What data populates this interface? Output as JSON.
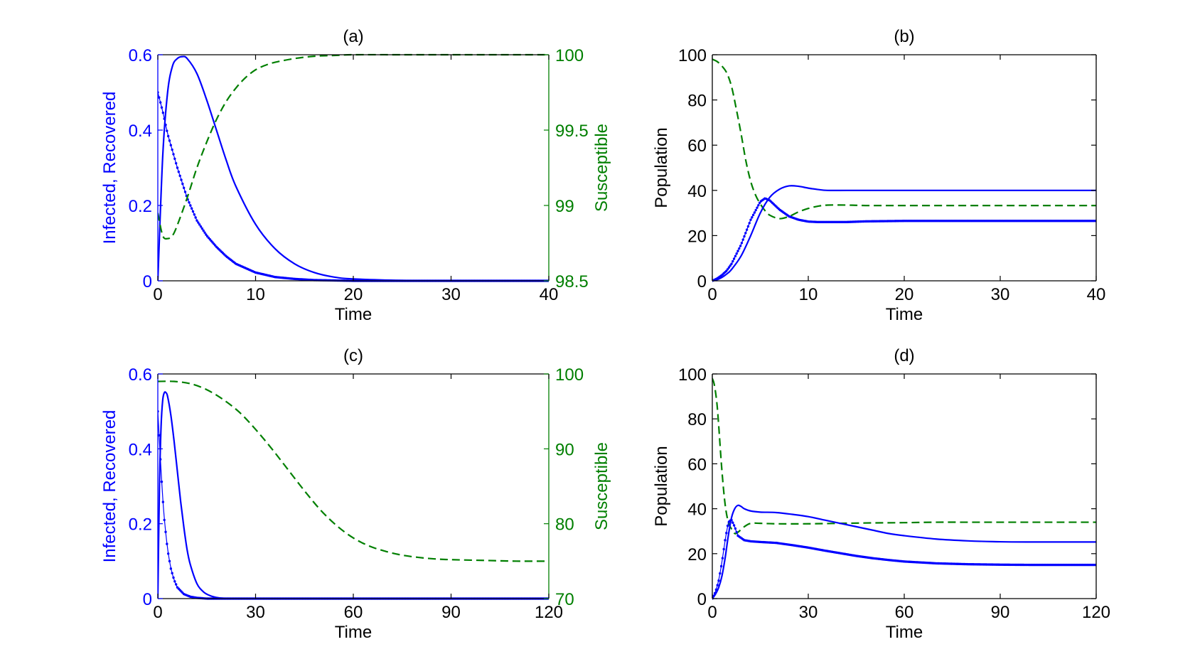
{
  "figure": {
    "description_free": true
  },
  "colors": {
    "blue": "#0000ff",
    "green": "#007f00",
    "black": "#000000",
    "dark_blue": "#1c1cc8"
  },
  "chart_data": [
    {
      "panel": "a",
      "type": "line",
      "title": "(a)",
      "xlabel": "Time",
      "ylabel_left": "Infected, Recovered",
      "ylabel_right": "Susceptible",
      "xlim": [
        0,
        40
      ],
      "ylim_left": [
        0,
        0.6
      ],
      "ylim_right": [
        98.5,
        100
      ],
      "xticks": [
        0,
        10,
        20,
        30,
        40
      ],
      "yticks_left": [
        0,
        0.2,
        0.4,
        0.6
      ],
      "ytick_labels_left": [
        "0",
        "0.2",
        "0.4",
        "0.6"
      ],
      "yticks_right": [
        98.5,
        99,
        99.5,
        100
      ],
      "ytick_labels_right": [
        "98.5",
        "99",
        "99.5",
        "100"
      ],
      "series": [
        {
          "name": "Infected",
          "axis": "left",
          "style": "solid",
          "color": "#0000ff",
          "x": [
            0,
            0.5,
            1,
            1.5,
            2,
            2.5,
            3,
            4,
            5,
            6,
            7,
            8,
            10,
            12,
            14,
            16,
            18,
            20,
            25,
            30,
            35,
            40
          ],
          "y": [
            0.0,
            0.33,
            0.5,
            0.57,
            0.59,
            0.595,
            0.59,
            0.55,
            0.48,
            0.4,
            0.32,
            0.25,
            0.15,
            0.085,
            0.045,
            0.022,
            0.01,
            0.005,
            0.001,
            0.0,
            0.0,
            0.0
          ]
        },
        {
          "name": "Recovered",
          "axis": "left",
          "style": "dotted",
          "color": "#0000ff",
          "x": [
            0,
            0.5,
            1,
            2,
            3,
            4,
            5,
            6,
            7,
            8,
            10,
            12,
            14,
            16,
            20,
            25,
            30,
            35,
            40
          ],
          "y": [
            0.5,
            0.45,
            0.39,
            0.3,
            0.22,
            0.16,
            0.12,
            0.09,
            0.065,
            0.045,
            0.022,
            0.01,
            0.005,
            0.002,
            0.0,
            0.0,
            0.0,
            0.0,
            0.0
          ]
        },
        {
          "name": "Susceptible",
          "axis": "right",
          "style": "dashed",
          "color": "#007f00",
          "x": [
            0,
            0.5,
            1,
            1.5,
            2,
            3,
            4,
            5,
            6,
            7,
            8,
            9,
            10,
            11,
            12,
            14,
            16,
            18,
            20,
            25,
            30,
            35,
            40
          ],
          "y": [
            98.95,
            98.8,
            98.78,
            98.8,
            98.87,
            99.05,
            99.25,
            99.42,
            99.57,
            99.69,
            99.78,
            99.85,
            99.9,
            99.93,
            99.95,
            99.975,
            99.99,
            99.995,
            100.0,
            100.0,
            100.0,
            100.0,
            100.0
          ]
        }
      ]
    },
    {
      "panel": "b",
      "type": "line",
      "title": "(b)",
      "xlabel": "Time",
      "ylabel": "Population",
      "xlim": [
        0,
        40
      ],
      "ylim": [
        0,
        100
      ],
      "xticks": [
        0,
        10,
        20,
        30,
        40
      ],
      "yticks": [
        0,
        20,
        40,
        60,
        80,
        100
      ],
      "series": [
        {
          "name": "Susceptible",
          "style": "dashed",
          "color": "#007f00",
          "x": [
            0,
            0.5,
            1,
            1.5,
            2,
            2.5,
            3,
            3.5,
            4,
            4.5,
            5,
            5.5,
            6,
            7,
            8,
            9,
            10,
            11,
            12,
            14,
            16,
            20,
            25,
            30,
            35,
            40
          ],
          "y": [
            98,
            97,
            95,
            92,
            86,
            76,
            65,
            53,
            44,
            38,
            34,
            31,
            29,
            27.5,
            28.5,
            30.5,
            32,
            33,
            33.5,
            33.5,
            33.3,
            33.3,
            33.3,
            33.3,
            33.3,
            33.3
          ]
        },
        {
          "name": "Infected",
          "style": "solid",
          "color": "#0000ff",
          "x": [
            0,
            0.5,
            1,
            1.5,
            2,
            3,
            4,
            5,
            6,
            7,
            8,
            9,
            10,
            11,
            12,
            14,
            16,
            20,
            25,
            30,
            35,
            40
          ],
          "y": [
            0,
            0.5,
            1.5,
            3,
            5,
            11,
            20,
            30,
            37,
            40.5,
            42,
            41.8,
            41,
            40.4,
            40,
            40,
            40,
            40,
            40,
            40,
            40,
            40
          ]
        },
        {
          "name": "Recovered",
          "style": "dotted",
          "color": "#0000ff",
          "x": [
            0,
            0.5,
            1,
            1.5,
            2,
            3,
            4,
            5,
            5.5,
            6,
            7,
            8,
            9,
            10,
            11,
            12,
            14,
            16,
            20,
            25,
            30,
            35,
            40
          ],
          "y": [
            0,
            1,
            2.5,
            4.5,
            7.5,
            16,
            27,
            35,
            36.5,
            35.5,
            31.5,
            28.5,
            27,
            26.2,
            26,
            26,
            26,
            26.3,
            26.5,
            26.5,
            26.5,
            26.5,
            26.5
          ]
        }
      ]
    },
    {
      "panel": "c",
      "type": "line",
      "title": "(c)",
      "xlabel": "Time",
      "ylabel_left": "Infected, Recovered",
      "ylabel_right": "Susceptible",
      "xlim": [
        0,
        120
      ],
      "ylim_left": [
        0,
        0.6
      ],
      "ylim_right": [
        70,
        100
      ],
      "xticks": [
        0,
        30,
        60,
        90,
        120
      ],
      "yticks_left": [
        0,
        0.2,
        0.4,
        0.6
      ],
      "ytick_labels_left": [
        "0",
        "0.2",
        "0.4",
        "0.6"
      ],
      "yticks_right": [
        70,
        80,
        90,
        100
      ],
      "ytick_labels_right": [
        "70",
        "80",
        "90",
        "100"
      ],
      "series": [
        {
          "name": "Infected",
          "axis": "left",
          "style": "solid",
          "color": "#0000ff",
          "x": [
            0,
            0.5,
            1,
            1.5,
            2,
            2.5,
            3,
            4,
            5,
            6,
            7,
            8,
            9,
            10,
            12,
            14,
            16,
            18,
            20,
            25,
            30,
            40,
            60,
            90,
            120
          ],
          "y": [
            0.0,
            0.3,
            0.46,
            0.53,
            0.55,
            0.55,
            0.54,
            0.49,
            0.42,
            0.34,
            0.26,
            0.19,
            0.13,
            0.09,
            0.04,
            0.018,
            0.008,
            0.003,
            0.001,
            0.0,
            0.0,
            0.0,
            0.0,
            0.0,
            0.0
          ]
        },
        {
          "name": "Recovered",
          "axis": "left",
          "style": "dotted",
          "color": "#0000ff",
          "x": [
            0,
            0.5,
            1,
            1.5,
            2,
            3,
            4,
            5,
            6,
            8,
            10,
            12,
            15,
            20,
            30,
            60,
            90,
            120
          ],
          "y": [
            0.5,
            0.42,
            0.34,
            0.27,
            0.21,
            0.13,
            0.08,
            0.05,
            0.03,
            0.012,
            0.005,
            0.002,
            0.0,
            0.0,
            0.0,
            0.0,
            0.0,
            0.0
          ]
        },
        {
          "name": "Susceptible",
          "axis": "right",
          "style": "dashed",
          "color": "#007f00",
          "x": [
            0,
            5,
            10,
            15,
            20,
            25,
            30,
            35,
            40,
            45,
            50,
            55,
            60,
            65,
            70,
            75,
            80,
            85,
            90,
            100,
            110,
            120
          ],
          "y": [
            99.0,
            99.0,
            98.7,
            97.9,
            96.6,
            94.9,
            92.6,
            90.0,
            87.2,
            84.4,
            81.8,
            79.7,
            78.1,
            77.0,
            76.3,
            75.8,
            75.5,
            75.3,
            75.2,
            75.1,
            75.0,
            75.0
          ]
        }
      ]
    },
    {
      "panel": "d",
      "type": "line",
      "title": "(d)",
      "xlabel": "Time",
      "ylabel": "Population",
      "xlim": [
        0,
        120
      ],
      "ylim": [
        0,
        100
      ],
      "xticks": [
        0,
        30,
        60,
        90,
        120
      ],
      "yticks": [
        0,
        20,
        40,
        60,
        80,
        100
      ],
      "series": [
        {
          "name": "Susceptible",
          "style": "dashed",
          "color": "#007f00",
          "x": [
            0,
            0.5,
            1,
            1.5,
            2,
            3,
            4,
            5,
            6,
            7,
            8,
            10,
            12,
            15,
            20,
            30,
            40,
            50,
            60,
            70,
            80,
            90,
            100,
            110,
            120
          ],
          "y": [
            98,
            96,
            92,
            86,
            77,
            57,
            42,
            34,
            31,
            29,
            29.5,
            32,
            33.5,
            33.5,
            33.3,
            33.3,
            33.5,
            33.7,
            33.8,
            34.0,
            34.0,
            34.0,
            34.0,
            34.0,
            34.0
          ]
        },
        {
          "name": "Infected",
          "style": "solid",
          "color": "#0000ff",
          "x": [
            0,
            1,
            2,
            3,
            4,
            5,
            6,
            7,
            8,
            9,
            10,
            12,
            15,
            20,
            25,
            30,
            35,
            40,
            45,
            50,
            55,
            60,
            70,
            80,
            90,
            100,
            110,
            120
          ],
          "y": [
            0,
            2,
            5,
            10,
            18,
            28,
            36,
            40,
            41.5,
            41,
            40,
            39,
            38.5,
            38.3,
            37.5,
            36.5,
            35,
            33.5,
            32,
            30.5,
            29,
            28,
            26.5,
            25.7,
            25.3,
            25.2,
            25.2,
            25.2
          ]
        },
        {
          "name": "Recovered",
          "style": "dotted",
          "color": "#0000ff",
          "x": [
            0,
            1,
            2,
            3,
            4,
            5,
            6,
            7,
            8,
            10,
            12,
            15,
            20,
            25,
            30,
            35,
            40,
            45,
            50,
            55,
            60,
            70,
            80,
            90,
            100,
            110,
            120
          ],
          "y": [
            0,
            3,
            8,
            16,
            26,
            34,
            35,
            32,
            28,
            26,
            25.5,
            25.2,
            24.8,
            23.8,
            22.7,
            21.4,
            20.2,
            19.0,
            18.0,
            17.2,
            16.5,
            15.7,
            15.3,
            15.1,
            15.0,
            15.0,
            15.0
          ]
        }
      ]
    }
  ]
}
